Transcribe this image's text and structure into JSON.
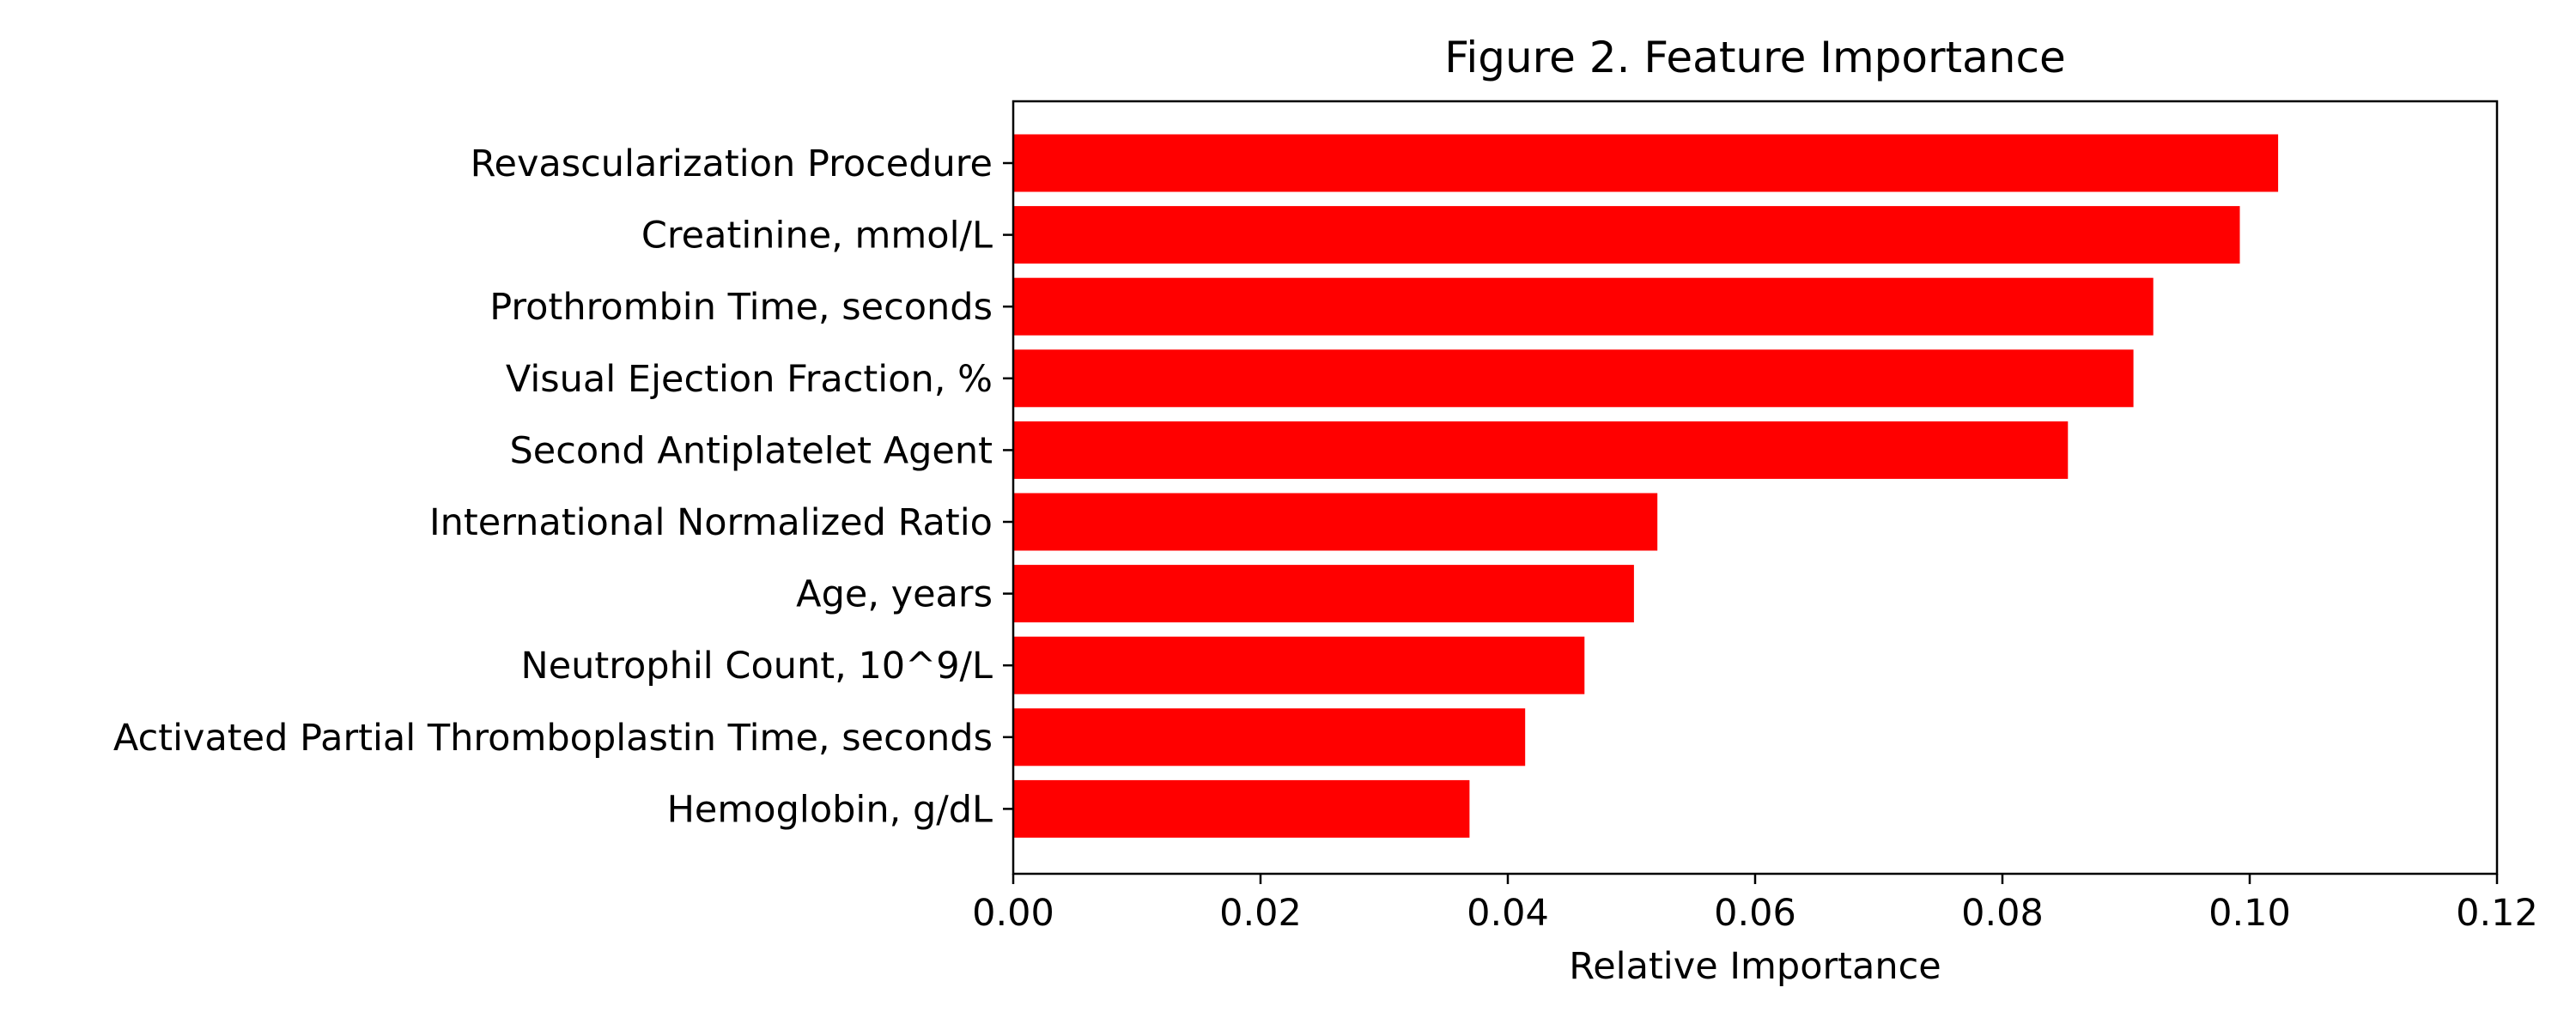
{
  "chart_data": {
    "type": "bar",
    "orientation": "horizontal",
    "title": "Figure 2. Feature Importance",
    "xlabel": "Relative Importance",
    "ylabel": "",
    "categories": [
      "Revascularization Procedure",
      "Creatinine, mmol/L",
      "Prothrombin Time, seconds",
      "Visual Ejection Fraction, %",
      "Second Antiplatelet Agent",
      "International Normalized Ratio",
      "Age, years",
      "Neutrophil Count, 10^9/L",
      "Activated Partial Thromboplastin Time, seconds",
      "Hemoglobin, g/dL"
    ],
    "values": [
      0.1023,
      0.0992,
      0.0922,
      0.0906,
      0.0853,
      0.0521,
      0.0502,
      0.0462,
      0.0414,
      0.0369
    ],
    "xlim": [
      0,
      0.12
    ],
    "xticks": [
      "0.00",
      "0.02",
      "0.04",
      "0.06",
      "0.08",
      "0.10",
      "0.12"
    ],
    "bar_color": "#ff0000",
    "grid": false,
    "legend": "none"
  }
}
